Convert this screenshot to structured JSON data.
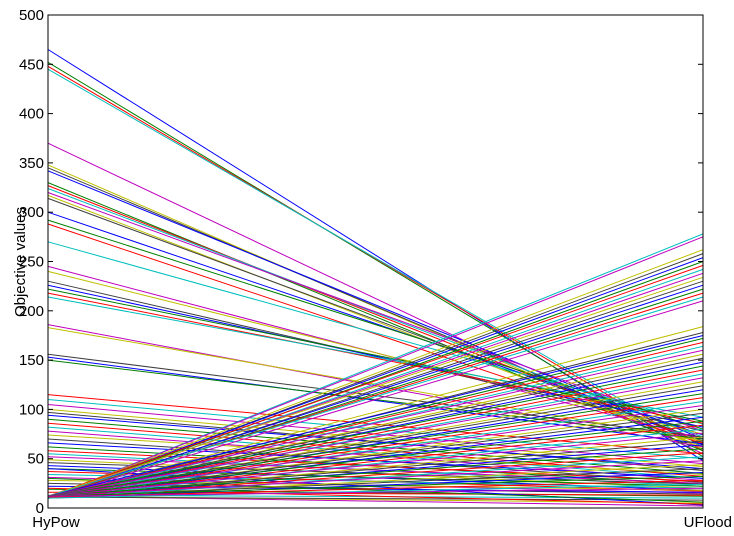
{
  "chart_data": {
    "type": "line",
    "title": "",
    "xlabel": "",
    "ylabel": "Objective values",
    "categories": [
      "HyPow",
      "UFlood"
    ],
    "ylim": [
      0,
      500
    ],
    "yticks": [
      0,
      50,
      100,
      150,
      200,
      250,
      300,
      350,
      400,
      450,
      500
    ],
    "grid": false,
    "legend": "none",
    "palette": [
      "#0000ff",
      "#008000",
      "#ff0000",
      "#00bfbf",
      "#bf00bf",
      "#bfbf00",
      "#404040"
    ],
    "series": [
      {
        "values": [
          465,
          48
        ]
      },
      {
        "values": [
          452,
          52
        ]
      },
      {
        "values": [
          448,
          58
        ]
      },
      {
        "values": [
          445,
          62
        ]
      },
      {
        "values": [
          370,
          55
        ]
      },
      {
        "values": [
          348,
          60
        ]
      },
      {
        "values": [
          345,
          64
        ]
      },
      {
        "values": [
          342,
          70
        ]
      },
      {
        "values": [
          330,
          58
        ]
      },
      {
        "values": [
          327,
          66
        ]
      },
      {
        "values": [
          324,
          72
        ]
      },
      {
        "values": [
          320,
          78
        ]
      },
      {
        "values": [
          317,
          62
        ]
      },
      {
        "values": [
          314,
          68
        ]
      },
      {
        "values": [
          300,
          74
        ]
      },
      {
        "values": [
          292,
          80
        ]
      },
      {
        "values": [
          288,
          65
        ]
      },
      {
        "values": [
          270,
          85
        ]
      },
      {
        "values": [
          245,
          70
        ]
      },
      {
        "values": [
          240,
          75
        ]
      },
      {
        "values": [
          230,
          78
        ]
      },
      {
        "values": [
          226,
          82
        ]
      },
      {
        "values": [
          222,
          88
        ]
      },
      {
        "values": [
          218,
          86
        ]
      },
      {
        "values": [
          214,
          92
        ]
      },
      {
        "values": [
          186,
          62
        ]
      },
      {
        "values": [
          183,
          68
        ]
      },
      {
        "values": [
          156,
          72
        ]
      },
      {
        "values": [
          153,
          65
        ]
      },
      {
        "values": [
          150,
          70
        ]
      },
      {
        "values": [
          115,
          55
        ]
      },
      {
        "values": [
          110,
          50
        ]
      },
      {
        "values": [
          105,
          45
        ]
      },
      {
        "values": [
          100,
          42
        ]
      },
      {
        "values": [
          97,
          38
        ]
      },
      {
        "values": [
          94,
          40
        ]
      },
      {
        "values": [
          90,
          35
        ]
      },
      {
        "values": [
          86,
          32
        ]
      },
      {
        "values": [
          82,
          30
        ]
      },
      {
        "values": [
          78,
          28
        ]
      },
      {
        "values": [
          74,
          34
        ]
      },
      {
        "values": [
          70,
          26
        ]
      },
      {
        "values": [
          66,
          30
        ]
      },
      {
        "values": [
          62,
          24
        ]
      },
      {
        "values": [
          58,
          27
        ]
      },
      {
        "values": [
          55,
          22
        ]
      },
      {
        "values": [
          52,
          25
        ]
      },
      {
        "values": [
          49,
          20
        ]
      },
      {
        "values": [
          46,
          24
        ]
      },
      {
        "values": [
          43,
          18
        ]
      },
      {
        "values": [
          40,
          22
        ]
      },
      {
        "values": [
          37,
          17
        ]
      },
      {
        "values": [
          34,
          20
        ]
      },
      {
        "values": [
          31,
          15
        ]
      },
      {
        "values": [
          28,
          18
        ]
      },
      {
        "values": [
          25,
          14
        ]
      },
      {
        "values": [
          22,
          16
        ]
      },
      {
        "values": [
          19,
          12
        ]
      },
      {
        "values": [
          16,
          13
        ]
      },
      {
        "values": [
          13,
          10
        ]
      },
      {
        "values": [
          12,
          2
        ]
      },
      {
        "values": [
          12,
          5
        ]
      },
      {
        "values": [
          11,
          8
        ]
      },
      {
        "values": [
          40,
          3
        ]
      },
      {
        "values": [
          30,
          6
        ]
      },
      {
        "values": [
          20,
          4
        ]
      },
      {
        "values": [
          10,
          278
        ]
      },
      {
        "values": [
          10,
          275
        ]
      },
      {
        "values": [
          11,
          262
        ]
      },
      {
        "values": [
          10,
          258
        ]
      },
      {
        "values": [
          11,
          254
        ]
      },
      {
        "values": [
          10,
          250
        ]
      },
      {
        "values": [
          12,
          246
        ]
      },
      {
        "values": [
          10,
          242
        ]
      },
      {
        "values": [
          11,
          238
        ]
      },
      {
        "values": [
          12,
          234
        ]
      },
      {
        "values": [
          10,
          230
        ]
      },
      {
        "values": [
          11,
          226
        ]
      },
      {
        "values": [
          10,
          222
        ]
      },
      {
        "values": [
          11,
          218
        ]
      },
      {
        "values": [
          12,
          214
        ]
      },
      {
        "values": [
          10,
          210
        ]
      },
      {
        "values": [
          11,
          184
        ]
      },
      {
        "values": [
          10,
          178
        ]
      },
      {
        "values": [
          12,
          175
        ]
      },
      {
        "values": [
          10,
          172
        ]
      },
      {
        "values": [
          11,
          168
        ]
      },
      {
        "values": [
          10,
          164
        ]
      },
      {
        "values": [
          12,
          160
        ]
      },
      {
        "values": [
          10,
          156
        ]
      },
      {
        "values": [
          11,
          152
        ]
      },
      {
        "values": [
          10,
          148
        ]
      },
      {
        "values": [
          12,
          144
        ]
      },
      {
        "values": [
          11,
          140
        ]
      },
      {
        "values": [
          10,
          136
        ]
      },
      {
        "values": [
          12,
          132
        ]
      },
      {
        "values": [
          10,
          128
        ]
      },
      {
        "values": [
          11,
          124
        ]
      },
      {
        "values": [
          10,
          120
        ]
      },
      {
        "values": [
          12,
          116
        ]
      },
      {
        "values": [
          11,
          112
        ]
      },
      {
        "values": [
          10,
          108
        ]
      },
      {
        "values": [
          12,
          104
        ]
      },
      {
        "values": [
          10,
          100
        ]
      },
      {
        "values": [
          11,
          96
        ]
      },
      {
        "values": [
          10,
          92
        ]
      },
      {
        "values": [
          12,
          88
        ]
      },
      {
        "values": [
          11,
          84
        ]
      },
      {
        "values": [
          10,
          80
        ]
      },
      {
        "values": [
          12,
          76
        ]
      },
      {
        "values": [
          10,
          72
        ]
      },
      {
        "values": [
          11,
          68
        ]
      },
      {
        "values": [
          10,
          64
        ]
      },
      {
        "values": [
          12,
          60
        ]
      },
      {
        "values": [
          11,
          56
        ]
      },
      {
        "values": [
          10,
          52
        ]
      },
      {
        "values": [
          12,
          48
        ]
      },
      {
        "values": [
          10,
          44
        ]
      },
      {
        "values": [
          11,
          40
        ]
      },
      {
        "values": [
          10,
          36
        ]
      },
      {
        "values": [
          12,
          32
        ]
      },
      {
        "values": [
          11,
          28
        ]
      },
      {
        "values": [
          10,
          24
        ]
      },
      {
        "values": [
          12,
          20
        ]
      }
    ]
  }
}
